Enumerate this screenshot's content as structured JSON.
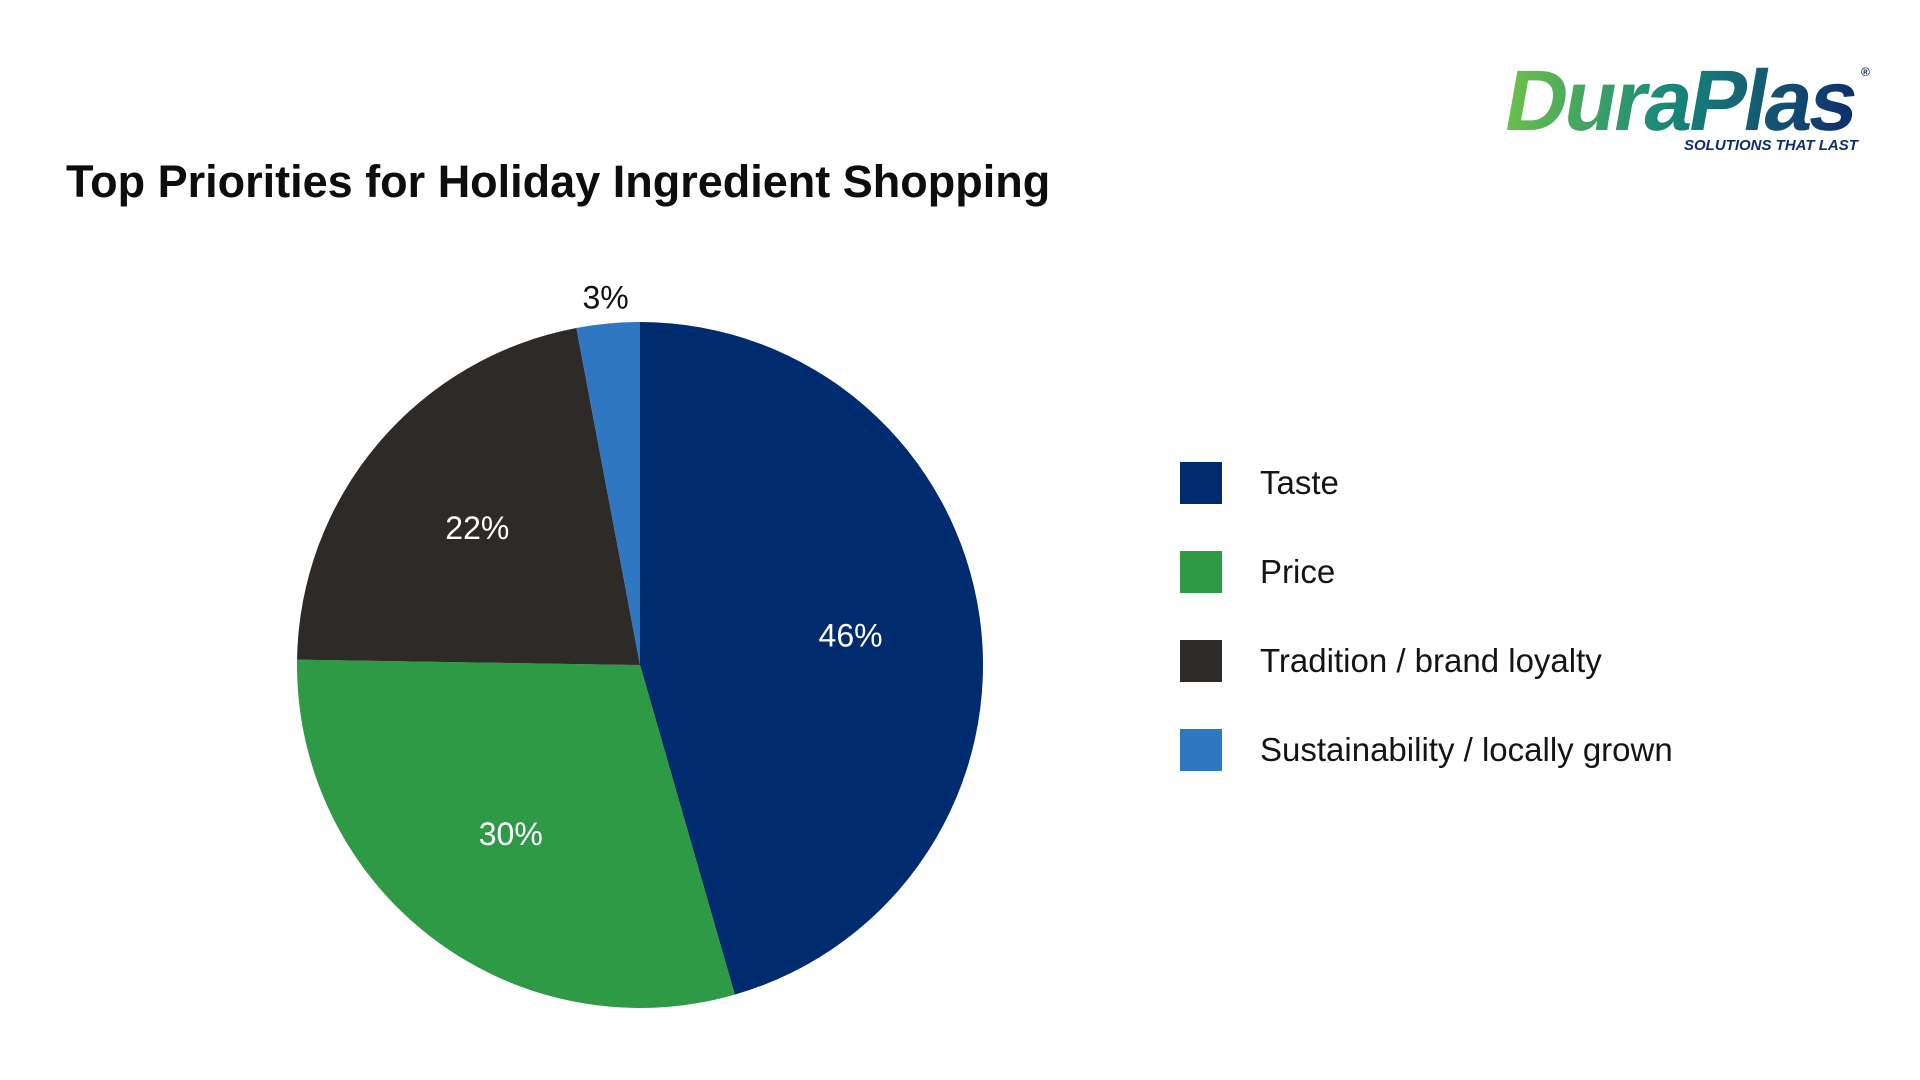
{
  "logo": {
    "wordmark_green": "Dura",
    "wordmark_blue": "Plas",
    "registered": "®",
    "tagline": "SOLUTIONS THAT LAST",
    "colors": {
      "green": "#5cb84a",
      "blue": "#0e2e6b",
      "teal": "#1a7a7a"
    }
  },
  "chart_data": {
    "type": "pie",
    "title": "Top Priorities for Holiday Ingredient Shopping",
    "categories": [
      "Taste",
      "Price",
      "Tradition / brand loyalty",
      "Sustainability / locally grown"
    ],
    "values": [
      46,
      30,
      22,
      3
    ],
    "data_labels": [
      "46%",
      "30%",
      "22%",
      "3%"
    ],
    "colors": [
      "#002b6e",
      "#2e9a46",
      "#2d2a27",
      "#2f77c0"
    ],
    "label_colors": [
      "#ffffff",
      "#ffffff",
      "#ffffff",
      "#111111"
    ],
    "start_angle_deg": 0,
    "direction": "clockwise",
    "legend_position": "right"
  }
}
